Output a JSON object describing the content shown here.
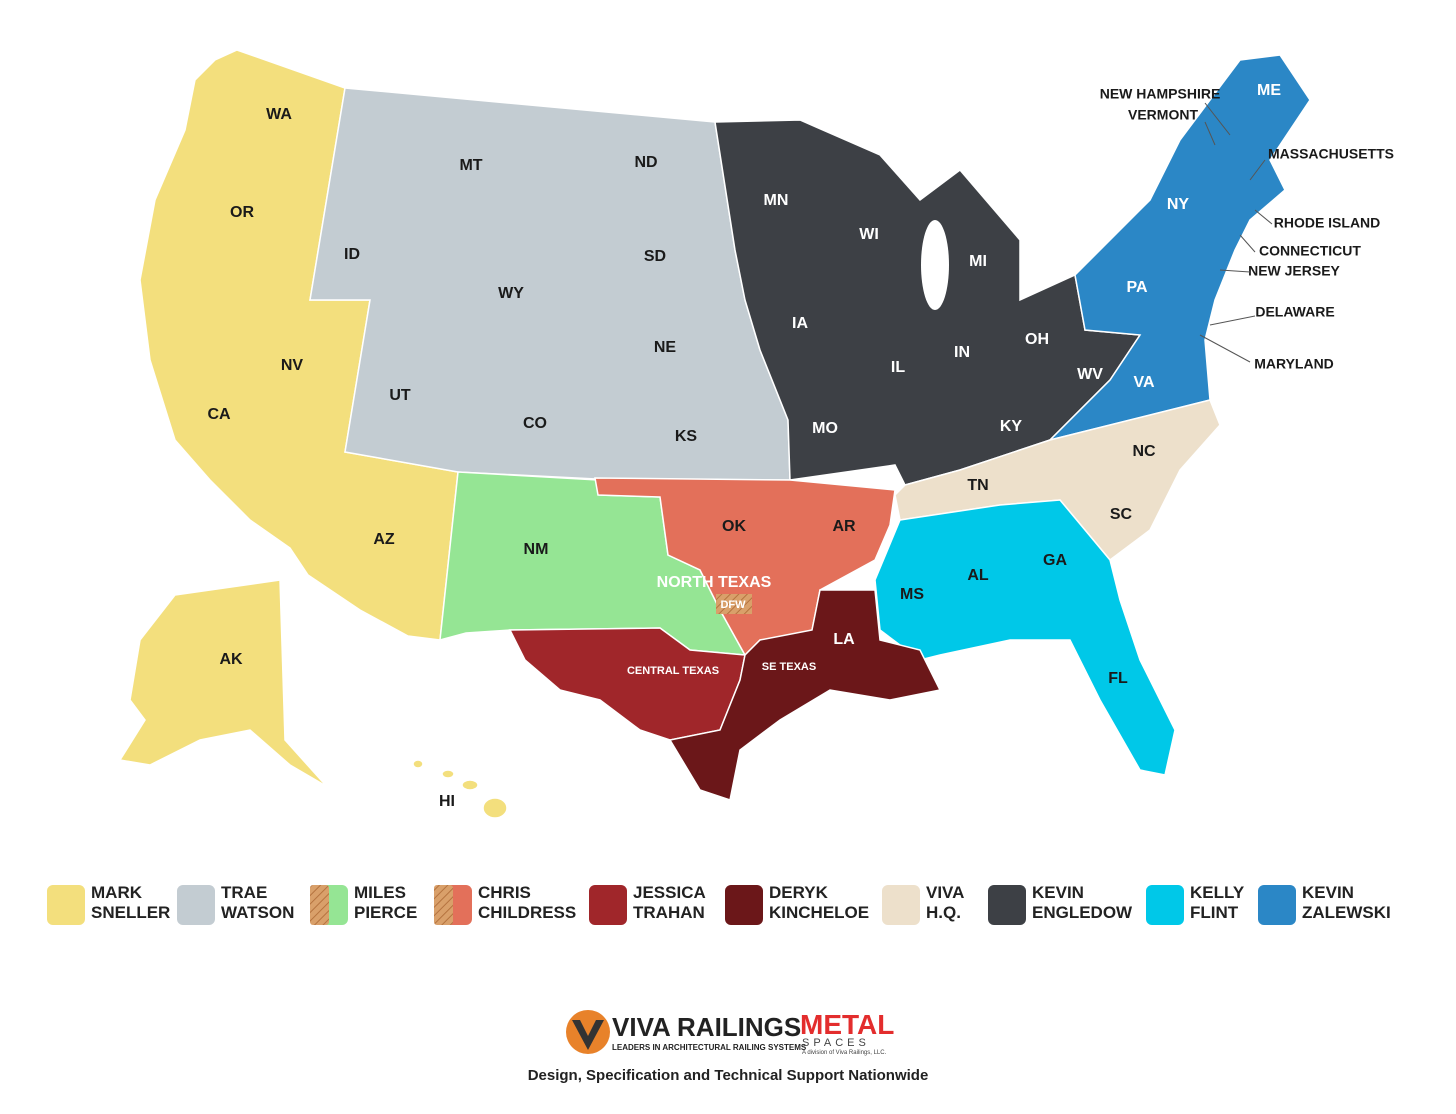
{
  "map": {
    "labels": [
      "WA",
      "OR",
      "CA",
      "NV",
      "AZ",
      "AK",
      "HI",
      "MT",
      "ID",
      "WY",
      "UT",
      "CO",
      "ND",
      "SD",
      "NE",
      "KS",
      "NM",
      "OK",
      "AR",
      "NORTH TEXAS",
      "DFW",
      "CENTRAL TEXAS",
      "SE TEXAS",
      "LA",
      "MN",
      "WI",
      "MI",
      "IA",
      "IL",
      "IN",
      "OH",
      "MO",
      "KY",
      "WV",
      "TN",
      "NC",
      "SC",
      "MS",
      "AL",
      "GA",
      "FL",
      "VA",
      "PA",
      "NY",
      "ME",
      "NEW HAMPSHIRE",
      "VERMONT",
      "MASSACHUSETTS",
      "RHODE ISLAND",
      "CONNECTICUT",
      "NEW JERSEY",
      "DELAWARE",
      "MARYLAND"
    ]
  },
  "legend": [
    {
      "name": [
        "MARK",
        "SNELLER"
      ],
      "color": "#f3df7d"
    },
    {
      "name": [
        "TRAE",
        "WATSON"
      ],
      "color": "#c3ccd2"
    },
    {
      "name": [
        "MILES",
        "PIERCE"
      ],
      "color": "#95e594"
    },
    {
      "name": [
        "CHRIS",
        "CHILDRESS"
      ],
      "color": "#e3705a"
    },
    {
      "name": [
        "JESSICA",
        "TRAHAN"
      ],
      "color": "#a0262a"
    },
    {
      "name": [
        "DERYK",
        "KINCHELOE"
      ],
      "color": "#6b1719"
    },
    {
      "name": [
        "VIVA",
        "H.Q."
      ],
      "color": "#ede0cb"
    },
    {
      "name": [
        "KEVIN",
        "ENGLEDOW"
      ],
      "color": "#3d4045"
    },
    {
      "name": [
        "KELLY",
        "FLINT"
      ],
      "color": "#00c8e8"
    },
    {
      "name": [
        "KEVIN",
        "ZALEWSKI"
      ],
      "color": "#2b87c6"
    }
  ],
  "logo": {
    "brand": "VIVA RAILINGS",
    "tagline": "LEADERS IN ARCHITECTURAL RAILING SYSTEMS",
    "sub_brand_1": "METAL",
    "sub_brand_2": "SPACES",
    "sub_note": "A division of Viva Railings, LLC."
  },
  "footer": "Design, Specification and Technical Support Nationwide"
}
